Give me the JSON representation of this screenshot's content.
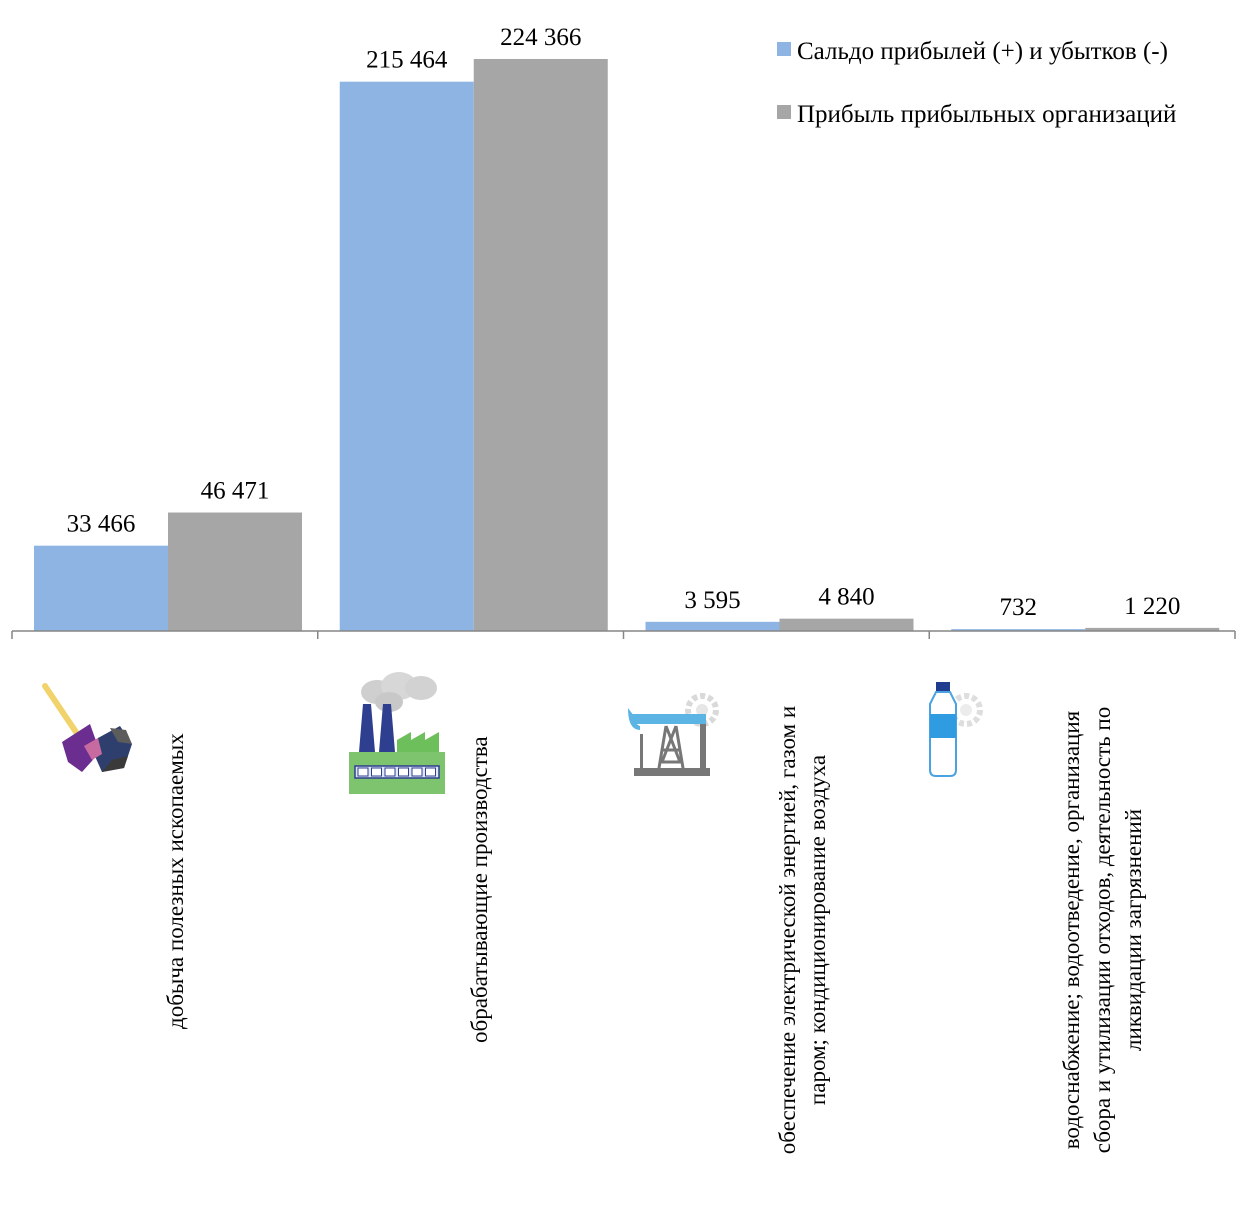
{
  "chart_data": {
    "type": "bar",
    "categories": [
      [
        "добыча полезных ископаемых"
      ],
      [
        "обрабатывающие производства"
      ],
      [
        "обеспечение электрической энергией, газом и",
        "паром; кондиционирование воздуха"
      ],
      [
        "водоснабжение; водоотведение, организация",
        "сбора и утилизации отходов, деятельность по",
        "ликвидации загрязнений"
      ]
    ],
    "category_icons": [
      "mining-icon",
      "factory-icon",
      "oil-pump-icon",
      "water-bottle-icon"
    ],
    "series": [
      {
        "name": "Сальдо прибылей (+) и убытков (-)",
        "color": "#8eb4e3",
        "values": [
          33466,
          215464,
          3595,
          732
        ],
        "labels": [
          "33 466",
          "215 464",
          "3 595",
          "732"
        ]
      },
      {
        "name": "Прибыль прибыльных организаций",
        "color": "#a6a6a6",
        "values": [
          46471,
          224366,
          4840,
          1220
        ],
        "labels": [
          "46 471",
          "224 366",
          "4 840",
          "1 220"
        ]
      }
    ],
    "ylim": [
      0,
      224366
    ],
    "grid": false,
    "legend_position": "top-right"
  }
}
